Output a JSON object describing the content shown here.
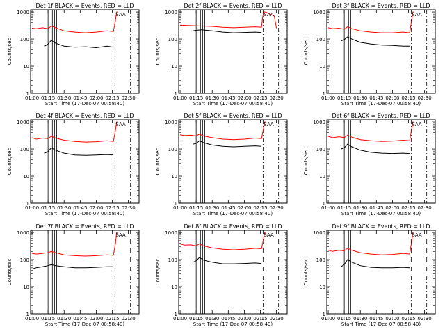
{
  "chart_data": [
    {
      "type": "line",
      "title": "Det 1f BLACK = Events, RED = LLD",
      "xlabel": "Start Time (17-Dec-07 00:58:40)",
      "ylabel": "Counts/sec",
      "x_tick_labels": [
        "01:00",
        "01:15",
        "01:30",
        "01:45",
        "02:00",
        "02:15",
        "02:30"
      ],
      "y_tick_labels": [
        "1",
        "10",
        "100",
        "1000"
      ],
      "y_scale": "log",
      "ylim": [
        1,
        1200
      ],
      "xlim_minutes": [
        58.67,
        160
      ],
      "series": [
        {
          "name": "Events",
          "color": "#000000",
          "x_minutes": [
            72,
            75,
            78,
            82,
            90,
            100,
            110,
            120,
            130,
            136
          ],
          "values": [
            55,
            65,
            90,
            70,
            55,
            50,
            52,
            48,
            55,
            50
          ]
        },
        {
          "name": "LLD",
          "color": "#ff0000",
          "x_minutes": [
            60,
            64,
            70,
            75,
            78,
            82,
            90,
            100,
            110,
            120,
            130,
            136,
            138,
            139,
            140
          ],
          "values": [
            250,
            240,
            260,
            240,
            300,
            260,
            200,
            180,
            170,
            180,
            200,
            190,
            500,
            1000,
            1000
          ]
        }
      ],
      "vlines_minutes": [
        75,
        79,
        81,
        83
      ],
      "dashed_vlines_minutes": [
        137.5,
        152
      ],
      "saa_label": "SAA"
    },
    {
      "type": "line",
      "title": "Det 2f BLACK = Events, RED = LLD",
      "xlabel": "Start Time (17-Dec-07 00:58:40)",
      "ylabel": "Counts/sec",
      "x_tick_labels": [
        "01:00",
        "01:15",
        "01:30",
        "01:45",
        "02:00",
        "02:15",
        "02:30"
      ],
      "y_tick_labels": [
        "1",
        "10",
        "100",
        "1000"
      ],
      "y_scale": "log",
      "ylim": [
        1,
        1200
      ],
      "xlim_minutes": [
        58.67,
        160
      ],
      "series": [
        {
          "name": "Events",
          "color": "#000000",
          "x_minutes": [
            72,
            75,
            80,
            90,
            100,
            110,
            120,
            130,
            136
          ],
          "values": [
            200,
            210,
            220,
            200,
            180,
            170,
            175,
            180,
            175
          ]
        },
        {
          "name": "LLD",
          "color": "#ff0000",
          "x_minutes": [
            60,
            70,
            80,
            90,
            100,
            110,
            120,
            130,
            136,
            137,
            138,
            140,
            148,
            150
          ],
          "values": [
            320,
            310,
            300,
            290,
            270,
            260,
            270,
            280,
            270,
            600,
            1000,
            1000,
            700,
            250
          ]
        }
      ],
      "vlines_minutes": [
        75,
        79,
        81,
        83
      ],
      "dashed_vlines_minutes": [
        137.5,
        152
      ],
      "saa_label": "SAA"
    },
    {
      "type": "line",
      "title": "Det 3f BLACK = Events, RED = LLD",
      "xlabel": "Start Time (17-Dec-07 00:58:40)",
      "ylabel": "Counts/sec",
      "x_tick_labels": [
        "01:00",
        "01:15",
        "01:30",
        "01:45",
        "02:00",
        "02:15",
        "02:30"
      ],
      "y_tick_labels": [
        "1",
        "10",
        "100",
        "1000"
      ],
      "y_scale": "log",
      "ylim": [
        1,
        1200
      ],
      "xlim_minutes": [
        58.67,
        160
      ],
      "series": [
        {
          "name": "Events",
          "color": "#000000",
          "x_minutes": [
            72,
            75,
            78,
            82,
            90,
            100,
            110,
            120,
            130,
            136
          ],
          "values": [
            85,
            95,
            120,
            100,
            75,
            65,
            60,
            58,
            55,
            55
          ]
        },
        {
          "name": "LLD",
          "color": "#ff0000",
          "x_minutes": [
            60,
            64,
            70,
            75,
            78,
            82,
            90,
            100,
            110,
            120,
            130,
            136,
            138,
            139,
            140
          ],
          "values": [
            260,
            240,
            250,
            230,
            280,
            240,
            200,
            180,
            170,
            170,
            180,
            170,
            500,
            1000,
            1000
          ]
        }
      ],
      "vlines_minutes": [
        75,
        79,
        81,
        83
      ],
      "dashed_vlines_minutes": [
        137.5,
        152
      ],
      "saa_label": "SAA"
    },
    {
      "type": "line",
      "title": "Det 4f BLACK = Events, RED = LLD",
      "xlabel": "Start Time (17-Dec-07 00:58:40)",
      "ylabel": "Counts/sec",
      "x_tick_labels": [
        "01:00",
        "01:15",
        "01:30",
        "01:45",
        "02:00",
        "02:15",
        "02:30"
      ],
      "y_tick_labels": [
        "1",
        "10",
        "100",
        "1000"
      ],
      "y_scale": "log",
      "ylim": [
        1,
        1200
      ],
      "xlim_minutes": [
        58.67,
        160
      ],
      "series": [
        {
          "name": "Events",
          "color": "#000000",
          "x_minutes": [
            72,
            75,
            78,
            82,
            90,
            100,
            110,
            120,
            130,
            136
          ],
          "values": [
            70,
            80,
            110,
            90,
            70,
            60,
            58,
            60,
            62,
            60
          ]
        },
        {
          "name": "LLD",
          "color": "#ff0000",
          "x_minutes": [
            60,
            64,
            70,
            75,
            78,
            82,
            90,
            100,
            110,
            120,
            130,
            136,
            138,
            139,
            140
          ],
          "values": [
            260,
            230,
            250,
            240,
            290,
            250,
            210,
            190,
            180,
            185,
            200,
            190,
            500,
            1000,
            1000
          ]
        }
      ],
      "vlines_minutes": [
        75,
        79,
        81,
        83
      ],
      "dashed_vlines_minutes": [
        137.5,
        152
      ],
      "saa_label": "SAA"
    },
    {
      "type": "line",
      "title": "Det 5f BLACK = Events, RED = LLD",
      "xlabel": "Start Time (17-Dec-07 00:58:40)",
      "ylabel": "Counts/sec",
      "x_tick_labels": [
        "01:00",
        "01:15",
        "01:30",
        "01:45",
        "02:00",
        "02:15",
        "02:30"
      ],
      "y_tick_labels": [
        "1",
        "10",
        "100",
        "1000"
      ],
      "y_scale": "log",
      "ylim": [
        1,
        1200
      ],
      "xlim_minutes": [
        58.67,
        160
      ],
      "series": [
        {
          "name": "Events",
          "color": "#000000",
          "x_minutes": [
            72,
            75,
            78,
            82,
            90,
            100,
            110,
            120,
            130,
            136
          ],
          "values": [
            150,
            160,
            200,
            170,
            140,
            125,
            120,
            125,
            130,
            125
          ]
        },
        {
          "name": "LLD",
          "color": "#ff0000",
          "x_minutes": [
            60,
            64,
            70,
            75,
            78,
            82,
            90,
            100,
            110,
            120,
            130,
            136,
            138,
            139,
            140
          ],
          "values": [
            330,
            310,
            320,
            300,
            350,
            300,
            260,
            230,
            220,
            230,
            250,
            240,
            600,
            1000,
            1000
          ]
        }
      ],
      "vlines_minutes": [
        75,
        79,
        81,
        83
      ],
      "dashed_vlines_minutes": [
        137.5,
        152
      ],
      "saa_label": "SAA"
    },
    {
      "type": "line",
      "title": "Det 6f BLACK = Events, RED = LLD",
      "xlabel": "Start Time (17-Dec-07 00:58:40)",
      "ylabel": "Counts/sec",
      "x_tick_labels": [
        "01:00",
        "01:15",
        "01:30",
        "01:45",
        "02:00",
        "02:15",
        "02:30"
      ],
      "y_tick_labels": [
        "1",
        "10",
        "100",
        "1000"
      ],
      "y_scale": "log",
      "ylim": [
        1,
        1200
      ],
      "xlim_minutes": [
        58.67,
        160
      ],
      "series": [
        {
          "name": "Events",
          "color": "#000000",
          "x_minutes": [
            72,
            75,
            78,
            82,
            90,
            100,
            110,
            120,
            130,
            136
          ],
          "values": [
            100,
            110,
            150,
            120,
            90,
            75,
            70,
            68,
            70,
            68
          ]
        },
        {
          "name": "LLD",
          "color": "#ff0000",
          "x_minutes": [
            60,
            64,
            70,
            75,
            78,
            82,
            90,
            100,
            110,
            120,
            130,
            136,
            138,
            139,
            140
          ],
          "values": [
            290,
            260,
            280,
            260,
            320,
            270,
            220,
            200,
            190,
            195,
            210,
            200,
            550,
            1000,
            1000
          ]
        }
      ],
      "vlines_minutes": [
        75,
        79,
        81,
        83
      ],
      "dashed_vlines_minutes": [
        137.5,
        152
      ],
      "saa_label": "SAA"
    },
    {
      "type": "line",
      "title": "Det 7f BLACK = Events, RED = LLD",
      "xlabel": "Start Time (17-Dec-07 00:58:40)",
      "ylabel": "Counts/sec",
      "x_tick_labels": [
        "01:00",
        "01:15",
        "01:30",
        "01:45",
        "02:00",
        "02:15",
        "02:30"
      ],
      "y_tick_labels": [
        "1",
        "10",
        "100",
        "1000"
      ],
      "y_scale": "log",
      "ylim": [
        1,
        1200
      ],
      "xlim_minutes": [
        58.67,
        160
      ],
      "series": [
        {
          "name": "Events",
          "color": "#000000",
          "x_minutes": [
            60,
            64,
            70,
            75,
            78,
            82,
            90,
            100,
            110,
            120,
            130,
            136
          ],
          "values": [
            45,
            50,
            55,
            60,
            65,
            60,
            55,
            50,
            50,
            52,
            55,
            55
          ]
        },
        {
          "name": "LLD",
          "color": "#ff0000",
          "x_minutes": [
            60,
            64,
            70,
            75,
            78,
            82,
            90,
            100,
            110,
            120,
            130,
            136,
            138,
            139,
            140
          ],
          "values": [
            170,
            160,
            170,
            180,
            200,
            180,
            150,
            140,
            135,
            140,
            150,
            145,
            400,
            1000,
            1000
          ]
        }
      ],
      "vlines_minutes": [
        75,
        79,
        81,
        83
      ],
      "dashed_vlines_minutes": [
        137.5,
        152
      ],
      "saa_label": "SAA"
    },
    {
      "type": "line",
      "title": "Det 8f BLACK = Events, RED = LLD",
      "xlabel": "Start Time (17-Dec-07 00:58:40)",
      "ylabel": "Counts/sec",
      "x_tick_labels": [
        "01:00",
        "01:15",
        "01:30",
        "01:45",
        "02:00",
        "02:15",
        "02:30"
      ],
      "y_tick_labels": [
        "1",
        "10",
        "100",
        "1000"
      ],
      "y_scale": "log",
      "ylim": [
        1,
        1200
      ],
      "xlim_minutes": [
        58.67,
        160
      ],
      "series": [
        {
          "name": "Events",
          "color": "#000000",
          "x_minutes": [
            72,
            75,
            78,
            82,
            90,
            100,
            110,
            120,
            130,
            136
          ],
          "values": [
            80,
            90,
            120,
            95,
            80,
            70,
            70,
            72,
            75,
            72
          ]
        },
        {
          "name": "LLD",
          "color": "#ff0000",
          "x_minutes": [
            60,
            64,
            70,
            75,
            78,
            82,
            90,
            100,
            110,
            120,
            130,
            136,
            138,
            139,
            140
          ],
          "values": [
            380,
            340,
            350,
            320,
            380,
            320,
            270,
            240,
            230,
            240,
            260,
            250,
            600,
            1000,
            1000
          ]
        }
      ],
      "vlines_minutes": [
        75,
        79,
        81,
        83
      ],
      "dashed_vlines_minutes": [
        137.5,
        152
      ],
      "saa_label": "SAA"
    },
    {
      "type": "line",
      "title": "Det 9f BLACK = Events, RED = LLD",
      "xlabel": "Start Time (17-Dec-07 00:58:40)",
      "ylabel": "Counts/sec",
      "x_tick_labels": [
        "01:00",
        "01:15",
        "01:30",
        "01:45",
        "02:00",
        "02:15",
        "02:30"
      ],
      "y_tick_labels": [
        "1",
        "10",
        "100",
        "1000"
      ],
      "y_scale": "log",
      "ylim": [
        1,
        1200
      ],
      "xlim_minutes": [
        58.67,
        160
      ],
      "series": [
        {
          "name": "Events",
          "color": "#000000",
          "x_minutes": [
            72,
            75,
            78,
            82,
            90,
            100,
            110,
            120,
            130,
            136
          ],
          "values": [
            55,
            65,
            100,
            80,
            60,
            52,
            50,
            50,
            52,
            50
          ]
        },
        {
          "name": "LLD",
          "color": "#ff0000",
          "x_minutes": [
            60,
            64,
            70,
            75,
            78,
            82,
            90,
            100,
            110,
            120,
            130,
            136,
            138,
            139,
            140
          ],
          "values": [
            220,
            200,
            220,
            210,
            260,
            220,
            180,
            160,
            150,
            155,
            170,
            160,
            450,
            1000,
            1000
          ]
        }
      ],
      "vlines_minutes": [
        75,
        79,
        81,
        83
      ],
      "dashed_vlines_minutes": [
        137.5,
        152
      ],
      "saa_label": "SAA"
    }
  ]
}
